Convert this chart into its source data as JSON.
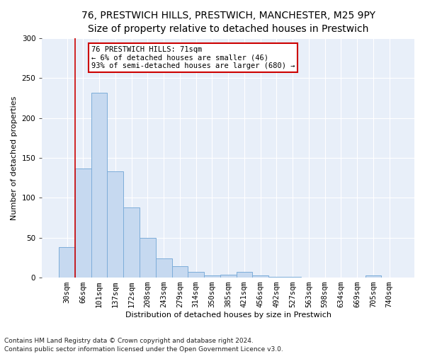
{
  "title_line1": "76, PRESTWICH HILLS, PRESTWICH, MANCHESTER, M25 9PY",
  "title_line2": "Size of property relative to detached houses in Prestwich",
  "xlabel": "Distribution of detached houses by size in Prestwich",
  "ylabel": "Number of detached properties",
  "bar_labels": [
    "30sqm",
    "66sqm",
    "101sqm",
    "137sqm",
    "172sqm",
    "208sqm",
    "243sqm",
    "279sqm",
    "314sqm",
    "350sqm",
    "385sqm",
    "421sqm",
    "456sqm",
    "492sqm",
    "527sqm",
    "563sqm",
    "598sqm",
    "634sqm",
    "669sqm",
    "705sqm",
    "740sqm"
  ],
  "bar_values": [
    38,
    137,
    232,
    133,
    88,
    50,
    24,
    14,
    7,
    3,
    4,
    7,
    3,
    1,
    1,
    0,
    0,
    0,
    0,
    3,
    0
  ],
  "bar_color": "#c6d9f0",
  "bar_edge_color": "#7dadd9",
  "vline_x_idx": 1,
  "vline_color": "#cc0000",
  "annotation_text": "76 PRESTWICH HILLS: 71sqm\n← 6% of detached houses are smaller (46)\n93% of semi-detached houses are larger (680) →",
  "annotation_box_color": "#ffffff",
  "annotation_box_edge": "#cc0000",
  "ylim": [
    0,
    300
  ],
  "yticks": [
    0,
    50,
    100,
    150,
    200,
    250,
    300
  ],
  "footnote": "Contains HM Land Registry data © Crown copyright and database right 2024.\nContains public sector information licensed under the Open Government Licence v3.0.",
  "bg_color": "#e8eff9",
  "fig_color": "#ffffff",
  "title_fontsize": 10,
  "subtitle_fontsize": 9,
  "axis_label_fontsize": 8,
  "tick_fontsize": 7.5,
  "footnote_fontsize": 6.5
}
